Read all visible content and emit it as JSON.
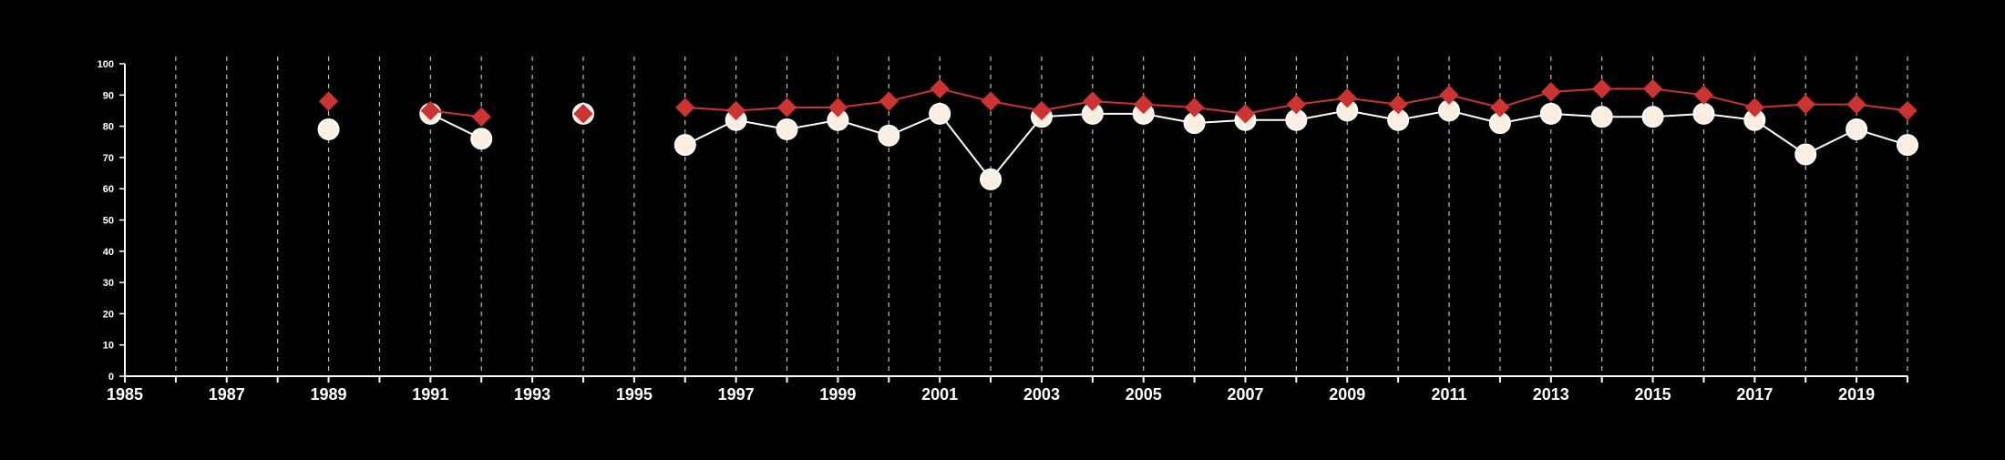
{
  "chart_data": {
    "type": "line",
    "title": "",
    "xlabel": "",
    "ylabel": "",
    "xlim": [
      1985,
      2020
    ],
    "ylim": [
      0,
      100
    ],
    "x_ticks": [
      1985,
      1987,
      1989,
      1991,
      1993,
      1995,
      1997,
      1999,
      2001,
      2003,
      2005,
      2007,
      2009,
      2011,
      2013,
      2015,
      2017,
      2019
    ],
    "y_ticks": [
      0,
      10,
      20,
      30,
      40,
      50,
      60,
      70,
      80,
      90,
      100
    ],
    "x_tick_labels": [
      "1985",
      "1987",
      "1989",
      "1991",
      "1993",
      "1995",
      "1997",
      "1999",
      "2001",
      "2003",
      "2005",
      "2007",
      "2009",
      "2011",
      "2013",
      "2015",
      "2017",
      "2019"
    ],
    "y_tick_labels": [
      "0",
      "10",
      "20",
      "30",
      "40",
      "50",
      "60",
      "70",
      "80",
      "90",
      "100"
    ],
    "grid": {
      "vertical": "dashed, every year",
      "horizontal": false
    },
    "legend": null,
    "x": [
      1989,
      1990,
      1991,
      1992,
      1993,
      1994,
      1995,
      1996,
      1997,
      1998,
      1999,
      2000,
      2001,
      2002,
      2003,
      2004,
      2005,
      2006,
      2007,
      2008,
      2009,
      2010,
      2011,
      2012,
      2013,
      2014,
      2015,
      2016,
      2017,
      2018,
      2019,
      2020
    ],
    "series": [
      {
        "marker": "diamond",
        "color": "#cc3333",
        "values": [
          88,
          null,
          85,
          83,
          null,
          84,
          null,
          86,
          85,
          86,
          86,
          88,
          92,
          88,
          85,
          88,
          87,
          86,
          84,
          87,
          89,
          87,
          90,
          86,
          91,
          92,
          92,
          90,
          86,
          87,
          87,
          85
        ]
      },
      {
        "marker": "circle",
        "color": "#fbeee0",
        "values": [
          79,
          null,
          84,
          76,
          null,
          84,
          null,
          74,
          82,
          79,
          82,
          77,
          84,
          63,
          83,
          84,
          84,
          81,
          82,
          82,
          85,
          82,
          85,
          81,
          84,
          83,
          83,
          84,
          82,
          71,
          79,
          74
        ]
      }
    ]
  }
}
